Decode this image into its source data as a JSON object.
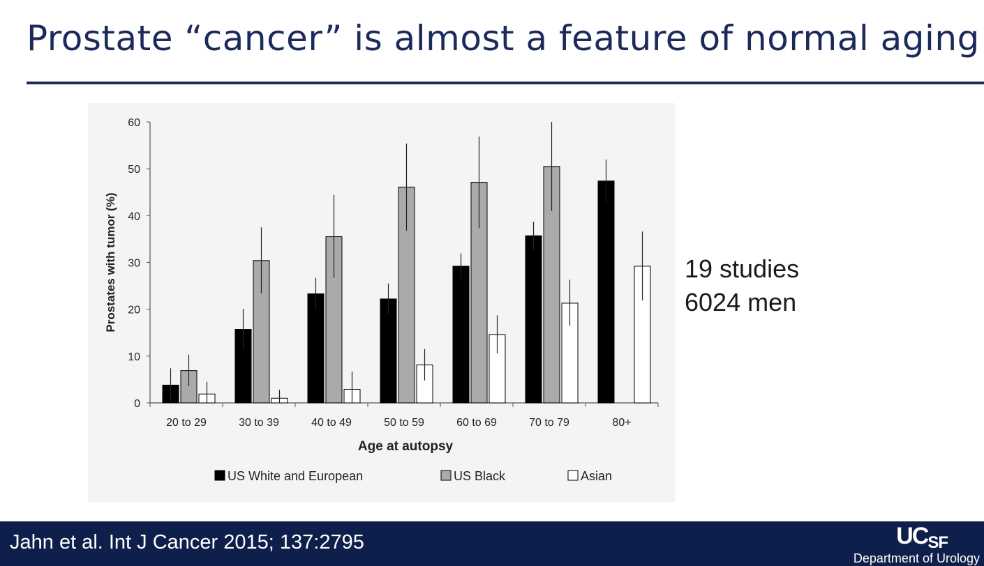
{
  "slide": {
    "title": "Prostate “cancer” is almost a feature of normal aging",
    "side_note": [
      "19 studies",
      "6024 men"
    ],
    "citation": "Jahn et al. Int J Cancer 2015; 137:2795",
    "logo_text": "UCSF",
    "department": "Department of Urology"
  },
  "chart_data": {
    "type": "bar",
    "title": "",
    "xlabel": "Age at autopsy",
    "ylabel": "Prostates with tumor (%)",
    "ylim": [
      0,
      60
    ],
    "yticks": [
      0,
      10,
      20,
      30,
      40,
      50,
      60
    ],
    "grid": false,
    "legend_position": "bottom",
    "categories": [
      "20 to 29",
      "30 to 39",
      "40 to 49",
      "50 to 59",
      "60 to 69",
      "70 to 79",
      "80+"
    ],
    "series": [
      {
        "name": "US White and European",
        "color": "#000000",
        "values": [
          3.8,
          15.7,
          23.3,
          22.2,
          29.2,
          35.7,
          47.4
        ],
        "error_low": [
          0.3,
          11.4,
          19.9,
          18.9,
          26.5,
          32.7,
          42.8
        ],
        "error_high": [
          7.4,
          20.1,
          26.7,
          25.5,
          31.9,
          38.7,
          52.0
        ]
      },
      {
        "name": "US Black",
        "color": "#aaaaaa",
        "values": [
          6.9,
          30.4,
          35.5,
          46.1,
          47.1,
          50.5,
          null
        ],
        "error_low": [
          3.6,
          23.4,
          26.7,
          36.8,
          37.3,
          41.0,
          null
        ],
        "error_high": [
          10.3,
          37.5,
          44.4,
          55.4,
          56.9,
          60.0,
          null
        ]
      },
      {
        "name": "Asian",
        "color": "#ffffff",
        "values": [
          1.9,
          1.0,
          2.9,
          8.1,
          14.6,
          21.3,
          29.2
        ],
        "error_low": [
          0.0,
          0.0,
          0.0,
          4.8,
          10.6,
          16.5,
          21.9
        ],
        "error_high": [
          4.5,
          2.8,
          6.7,
          11.5,
          18.7,
          26.3,
          36.6
        ]
      }
    ]
  }
}
